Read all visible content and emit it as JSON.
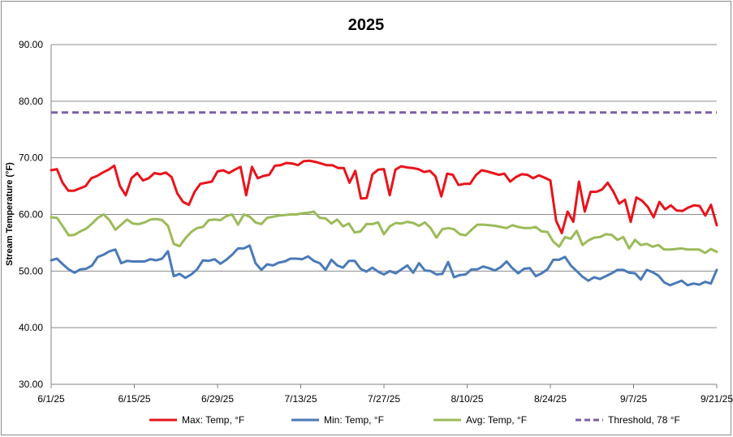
{
  "chart_data": {
    "type": "line",
    "title": "2025",
    "xlabel": "",
    "ylabel": "Stream Temperature (°F)",
    "ylim": [
      30,
      90
    ],
    "yticks": [
      "30.00",
      "40.00",
      "50.00",
      "60.00",
      "70.00",
      "80.00",
      "90.00"
    ],
    "xlim": [
      "6/1/25",
      "9/21/25"
    ],
    "xticks": [
      "6/1/25",
      "6/15/25",
      "6/29/25",
      "7/13/25",
      "7/27/25",
      "8/10/25",
      "8/24/25",
      "9/7/25",
      "9/21/25"
    ],
    "grid": "horizontal",
    "legend": "bottom",
    "series": [
      {
        "name": "Max: Temp, °F",
        "color": "#e8141c",
        "dash": "solid",
        "values": [
          67.8,
          68.0,
          65.6,
          64.2,
          64.2,
          64.6,
          65.0,
          66.4,
          66.8,
          67.4,
          67.9,
          68.6,
          65.0,
          63.4,
          66.4,
          67.3,
          66.0,
          66.4,
          67.3,
          67.1,
          67.4,
          66.6,
          63.7,
          62.2,
          61.7,
          64.0,
          65.4,
          65.6,
          65.8,
          67.6,
          67.8,
          67.3,
          67.9,
          68.4,
          63.4,
          68.4,
          66.4,
          66.8,
          67.0,
          68.6,
          68.7,
          69.1,
          69.0,
          68.7,
          69.4,
          69.5,
          69.3,
          69.0,
          68.7,
          68.7,
          68.2,
          68.2,
          65.6,
          67.7,
          62.8,
          62.9,
          67.1,
          67.9,
          68.0,
          63.4,
          67.9,
          68.5,
          68.3,
          68.2,
          68.0,
          67.5,
          67.7,
          66.7,
          63.2,
          67.2,
          67.0,
          65.2,
          65.4,
          65.4,
          66.9,
          67.8,
          67.6,
          67.3,
          67.0,
          67.2,
          65.8,
          66.6,
          67.1,
          67.0,
          66.4,
          66.9,
          66.5,
          66.0,
          58.9,
          56.7,
          60.5,
          58.7,
          65.8,
          60.5,
          64.0,
          64.0,
          64.4,
          65.6,
          64.0,
          61.9,
          62.6,
          58.7,
          63.0,
          62.4,
          61.3,
          59.5,
          62.2,
          60.9,
          61.6,
          60.7,
          60.6,
          61.2,
          61.6,
          61.5,
          59.8,
          61.7,
          58.1
        ]
      },
      {
        "name": "Min: Temp, °F",
        "color": "#4a7ab8",
        "dash": "solid",
        "values": [
          51.9,
          52.2,
          51.2,
          50.3,
          49.7,
          50.3,
          50.4,
          51.0,
          52.5,
          52.9,
          53.5,
          53.8,
          51.4,
          51.8,
          51.7,
          51.7,
          51.7,
          52.1,
          51.9,
          52.2,
          53.5,
          49.1,
          49.5,
          48.8,
          49.4,
          50.3,
          51.9,
          51.8,
          52.1,
          51.3,
          52.0,
          52.9,
          54.0,
          54.0,
          54.5,
          51.4,
          50.2,
          51.2,
          51.0,
          51.5,
          51.7,
          52.2,
          52.2,
          52.1,
          52.6,
          51.8,
          51.4,
          50.2,
          52.0,
          51.0,
          50.6,
          51.8,
          51.8,
          50.4,
          49.9,
          50.6,
          49.9,
          49.4,
          50.0,
          49.6,
          50.3,
          51.0,
          49.7,
          51.4,
          50.1,
          50.0,
          49.4,
          49.5,
          51.6,
          48.9,
          49.3,
          49.4,
          50.3,
          50.3,
          50.8,
          50.5,
          50.1,
          50.7,
          51.7,
          50.5,
          49.6,
          50.4,
          50.5,
          49.1,
          49.6,
          50.3,
          52.0,
          52.0,
          52.5,
          51.0,
          50.0,
          49.0,
          48.3,
          48.9,
          48.6,
          49.1,
          49.6,
          50.2,
          50.2,
          49.7,
          49.6,
          48.5,
          50.2,
          49.8,
          49.2,
          48.0,
          47.5,
          47.9,
          48.3,
          47.5,
          47.8,
          47.6,
          48.1,
          47.8,
          50.2
        ]
      },
      {
        "name": "Avg: Temp, °F",
        "color": "#9bbb59",
        "dash": "solid",
        "values": [
          59.5,
          59.4,
          57.9,
          56.3,
          56.4,
          57.0,
          57.5,
          58.4,
          59.4,
          60.0,
          59.0,
          57.3,
          58.2,
          59.1,
          58.4,
          58.3,
          58.6,
          59.1,
          59.2,
          59.0,
          58.0,
          54.8,
          54.4,
          55.8,
          56.9,
          57.6,
          57.8,
          59.0,
          59.1,
          59.0,
          59.7,
          60.0,
          58.2,
          60.0,
          59.6,
          58.6,
          58.3,
          59.4,
          59.6,
          59.8,
          59.9,
          60.0,
          60.0,
          60.2,
          60.3,
          60.5,
          59.4,
          59.3,
          58.4,
          59.1,
          57.9,
          58.4,
          56.8,
          57.0,
          58.3,
          58.3,
          58.6,
          56.5,
          57.9,
          58.5,
          58.4,
          58.7,
          58.5,
          58.0,
          58.6,
          57.6,
          55.9,
          57.4,
          57.6,
          57.4,
          56.5,
          56.3,
          57.3,
          58.2,
          58.2,
          58.1,
          58.0,
          57.8,
          57.6,
          58.1,
          57.8,
          57.6,
          57.6,
          57.8,
          57.0,
          56.9,
          55.2,
          54.3,
          56.0,
          55.7,
          57.1,
          54.6,
          55.4,
          55.9,
          56.0,
          56.5,
          56.4,
          55.5,
          56.0,
          54.0,
          55.5,
          54.6,
          54.8,
          54.3,
          54.6,
          53.8,
          53.8,
          53.9,
          54.0,
          53.8,
          53.8,
          53.8,
          53.2,
          53.9,
          53.4
        ]
      },
      {
        "name": "Threshold, 78 °F",
        "color": "#7b5fa8",
        "dash": "dashed",
        "values": [
          78,
          78
        ]
      }
    ]
  }
}
